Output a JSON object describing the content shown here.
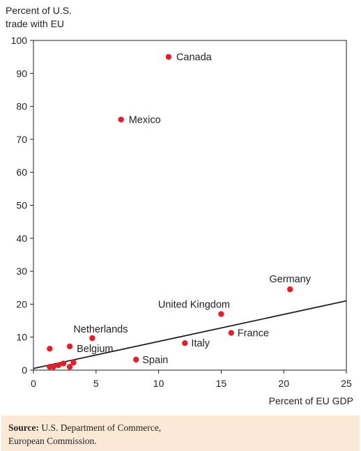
{
  "chart_data": {
    "type": "scatter",
    "ylabel_lines": [
      "Percent of U.S.",
      "trade with EU"
    ],
    "xlabel": "Percent of EU GDP",
    "xlim": [
      0,
      25
    ],
    "ylim": [
      0,
      100
    ],
    "x_ticks": [
      0,
      5,
      10,
      15,
      20,
      25
    ],
    "y_ticks": [
      0,
      10,
      20,
      30,
      40,
      50,
      60,
      70,
      80,
      90,
      100
    ],
    "grid": false,
    "point_color": "#e31e2d",
    "points": [
      {
        "label": "Canada",
        "x": 10.8,
        "y": 95.0
      },
      {
        "label": "Mexico",
        "x": 7.0,
        "y": 76.0
      },
      {
        "label": "Germany",
        "x": 20.5,
        "y": 24.5
      },
      {
        "label": "United Kingdom",
        "x": 15.0,
        "y": 17.0
      },
      {
        "label": "France",
        "x": 15.8,
        "y": 11.3
      },
      {
        "label": "Italy",
        "x": 12.1,
        "y": 8.2
      },
      {
        "label": "Netherlands",
        "x": 4.7,
        "y": 9.7
      },
      {
        "label": "Belgium",
        "x": 2.9,
        "y": 7.2
      },
      {
        "label": "Spain",
        "x": 8.2,
        "y": 3.2
      },
      {
        "label": "",
        "x": 1.3,
        "y": 6.5
      },
      {
        "label": "",
        "x": 1.3,
        "y": 1.0
      },
      {
        "label": "",
        "x": 1.6,
        "y": 1.0
      },
      {
        "label": "",
        "x": 2.0,
        "y": 1.5
      },
      {
        "label": "",
        "x": 2.4,
        "y": 2.0
      },
      {
        "label": "",
        "x": 2.9,
        "y": 1.0
      },
      {
        "label": "",
        "x": 3.2,
        "y": 2.3
      }
    ],
    "trend_line": {
      "x": [
        0,
        25
      ],
      "y": [
        0.5,
        21.0
      ]
    }
  },
  "source": {
    "prefix": "Source:",
    "text": "U.S. Department of Commerce,",
    "text_line2": "European Commission."
  }
}
